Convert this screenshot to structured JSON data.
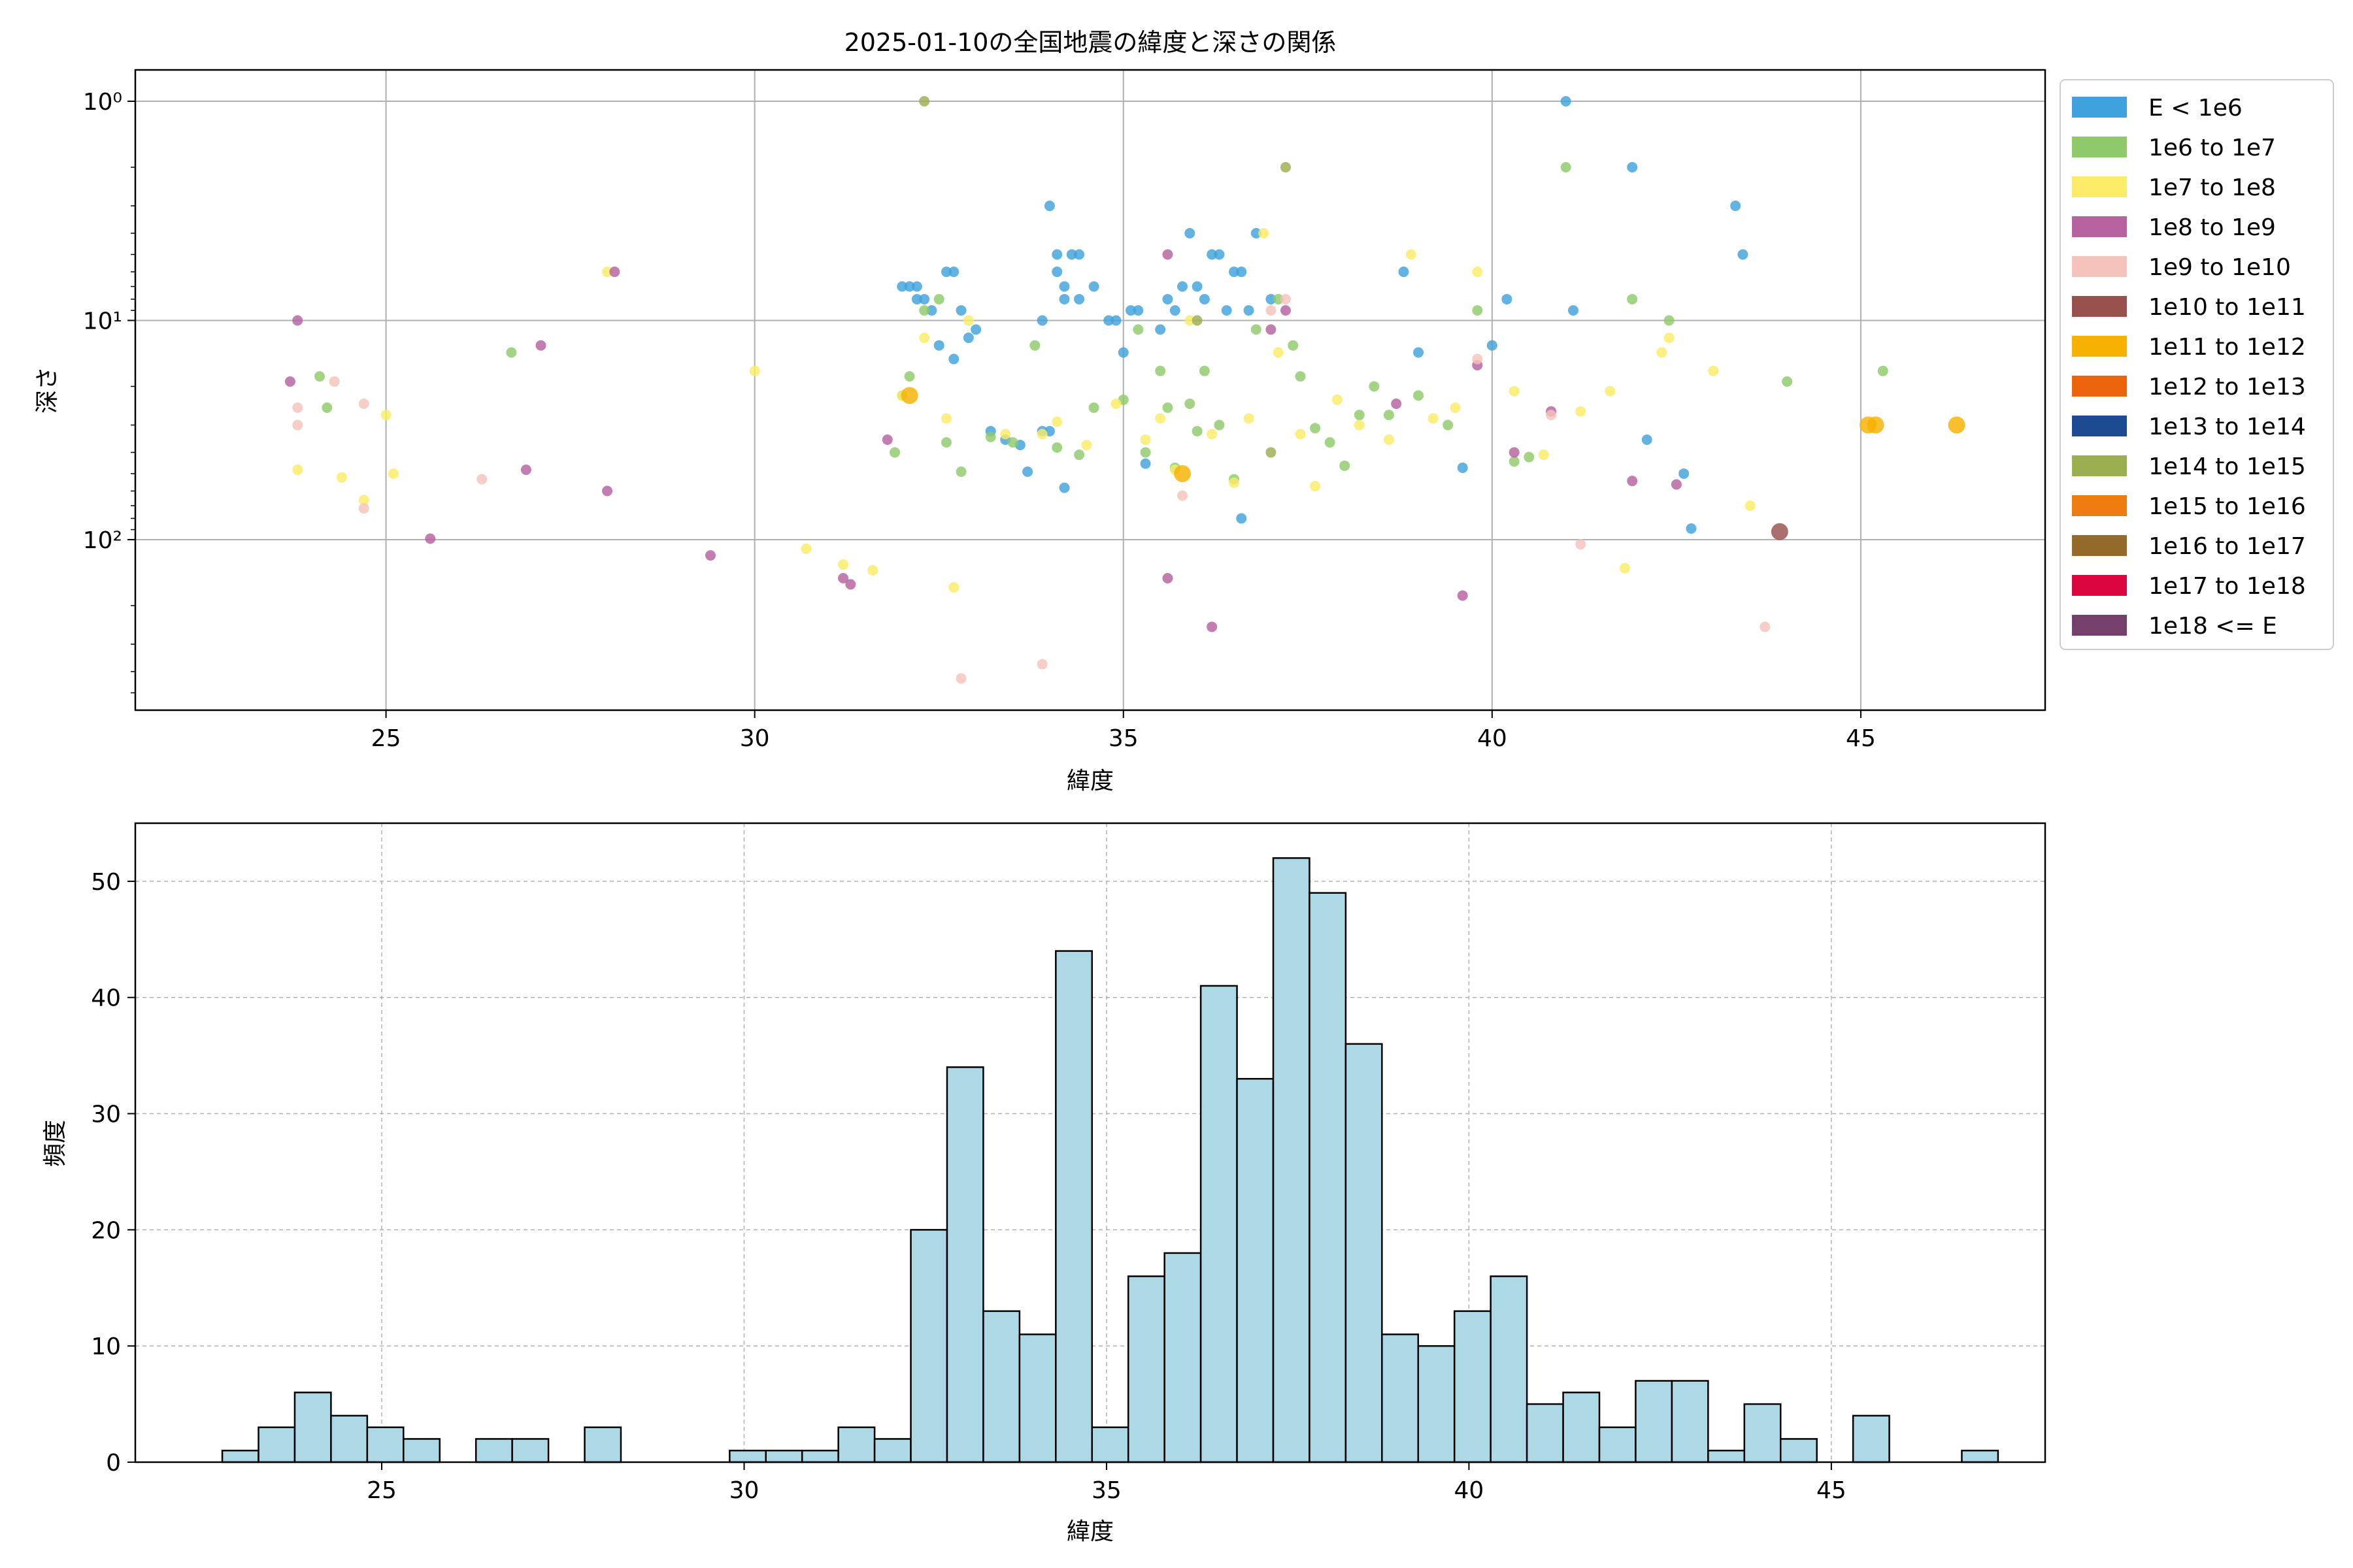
{
  "chart_data": [
    {
      "type": "scatter",
      "title": "2025-01-10の全国地震の緯度と深さの関係",
      "xlabel": "緯度",
      "ylabel": "深さ",
      "xlim": [
        21.6,
        47.5
      ],
      "ylim_depth": [
        1,
        600
      ],
      "yscale": "log",
      "y_inverted": true,
      "grid": true,
      "xticks": [
        25,
        30,
        35,
        40,
        45
      ],
      "yticks": [
        {
          "value": 1,
          "label": "10⁰"
        },
        {
          "value": 10,
          "label": "10¹"
        },
        {
          "value": 100,
          "label": "10²"
        }
      ],
      "legend": {
        "position": "outside-right",
        "entries": [
          {
            "label": "E < 1e6",
            "color": "#3fa2dc"
          },
          {
            "label": "1e6 to 1e7",
            "color": "#8fca6a"
          },
          {
            "label": "1e7 to 1e8",
            "color": "#fbeb66"
          },
          {
            "label": "1e8 to 1e9",
            "color": "#b5629f"
          },
          {
            "label": "1e9 to 1e10",
            "color": "#f5c2bc"
          },
          {
            "label": "1e10 to 1e11",
            "color": "#98514d"
          },
          {
            "label": "1e11 to 1e12",
            "color": "#f7b100"
          },
          {
            "label": "1e12 to 1e13",
            "color": "#ec6409"
          },
          {
            "label": "1e13 to 1e14",
            "color": "#1d4b92"
          },
          {
            "label": "1e14 to 1e15",
            "color": "#9aaf4f"
          },
          {
            "label": "1e15 to 1e16",
            "color": "#ee7b0d"
          },
          {
            "label": "1e16 to 1e17",
            "color": "#936a2a"
          },
          {
            "label": "1e17 to 1e18",
            "color": "#dc063e"
          },
          {
            "label": "1e18 <= E",
            "color": "#76406d"
          }
        ]
      },
      "series": [
        {
          "name": "E < 1e6",
          "points": [
            [
              32.0,
              7
            ],
            [
              32.1,
              7
            ],
            [
              32.2,
              7
            ],
            [
              32.2,
              8
            ],
            [
              32.3,
              8
            ],
            [
              32.4,
              9
            ],
            [
              32.5,
              13
            ],
            [
              32.6,
              6
            ],
            [
              32.7,
              6
            ],
            [
              32.8,
              9
            ],
            [
              32.9,
              12
            ],
            [
              32.7,
              15
            ],
            [
              33.0,
              11
            ],
            [
              33.2,
              32
            ],
            [
              33.4,
              35
            ],
            [
              33.6,
              37
            ],
            [
              33.7,
              49
            ],
            [
              33.9,
              10
            ],
            [
              33.9,
              32
            ],
            [
              34.0,
              32
            ],
            [
              34.0,
              3
            ],
            [
              34.1,
              5
            ],
            [
              34.2,
              7
            ],
            [
              34.3,
              5
            ],
            [
              34.4,
              8
            ],
            [
              34.1,
              6
            ],
            [
              34.2,
              8
            ],
            [
              34.2,
              58
            ],
            [
              34.4,
              5
            ],
            [
              34.6,
              7
            ],
            [
              34.8,
              10
            ],
            [
              34.9,
              10
            ],
            [
              35.0,
              14
            ],
            [
              35.1,
              9
            ],
            [
              35.2,
              9
            ],
            [
              35.3,
              45
            ],
            [
              35.5,
              11
            ],
            [
              35.6,
              8
            ],
            [
              35.7,
              9
            ],
            [
              35.8,
              7
            ],
            [
              35.9,
              4
            ],
            [
              36.0,
              7
            ],
            [
              36.1,
              8
            ],
            [
              36.2,
              5
            ],
            [
              36.3,
              5
            ],
            [
              36.4,
              9
            ],
            [
              36.5,
              6
            ],
            [
              36.6,
              6
            ],
            [
              36.7,
              9
            ],
            [
              36.6,
              80
            ],
            [
              36.8,
              4
            ],
            [
              37.0,
              8
            ],
            [
              38.8,
              6
            ],
            [
              39.0,
              14
            ],
            [
              39.6,
              47
            ],
            [
              40.0,
              13
            ],
            [
              40.2,
              8
            ],
            [
              41.0,
              1
            ],
            [
              41.1,
              9
            ],
            [
              41.9,
              2
            ],
            [
              42.1,
              35
            ],
            [
              42.6,
              50
            ],
            [
              42.7,
              89
            ],
            [
              43.3,
              3
            ],
            [
              43.4,
              5
            ]
          ]
        },
        {
          "name": "1e6 to 1e7",
          "points": [
            [
              24.1,
              18
            ],
            [
              24.2,
              25
            ],
            [
              26.7,
              14
            ],
            [
              31.9,
              40
            ],
            [
              32.0,
              22
            ],
            [
              32.1,
              18
            ],
            [
              32.3,
              9
            ],
            [
              32.5,
              8
            ],
            [
              32.6,
              36
            ],
            [
              32.8,
              49
            ],
            [
              33.2,
              34
            ],
            [
              33.5,
              36
            ],
            [
              33.8,
              13
            ],
            [
              34.1,
              38
            ],
            [
              34.4,
              41
            ],
            [
              34.6,
              25
            ],
            [
              35.0,
              23
            ],
            [
              35.2,
              11
            ],
            [
              35.3,
              40
            ],
            [
              35.5,
              17
            ],
            [
              35.6,
              25
            ],
            [
              35.7,
              47
            ],
            [
              35.9,
              24
            ],
            [
              36.0,
              32
            ],
            [
              36.1,
              17
            ],
            [
              36.3,
              30
            ],
            [
              36.5,
              53
            ],
            [
              36.8,
              11
            ],
            [
              37.1,
              8
            ],
            [
              37.3,
              13
            ],
            [
              37.4,
              18
            ],
            [
              37.6,
              31
            ],
            [
              37.8,
              36
            ],
            [
              38.0,
              46
            ],
            [
              38.2,
              27
            ],
            [
              38.4,
              20
            ],
            [
              38.6,
              27
            ],
            [
              39.0,
              22
            ],
            [
              39.4,
              30
            ],
            [
              39.8,
              9
            ],
            [
              40.3,
              44
            ],
            [
              40.5,
              42
            ],
            [
              41.0,
              2
            ],
            [
              41.9,
              8
            ],
            [
              42.4,
              10
            ],
            [
              44.0,
              19
            ],
            [
              45.3,
              17
            ]
          ]
        },
        {
          "name": "1e7 to 1e8",
          "points": [
            [
              23.8,
              48
            ],
            [
              24.4,
              52
            ],
            [
              24.7,
              66
            ],
            [
              25.0,
              27
            ],
            [
              25.1,
              50
            ],
            [
              28.0,
              6
            ],
            [
              30.0,
              17
            ],
            [
              30.7,
              110
            ],
            [
              31.2,
              130
            ],
            [
              31.6,
              138
            ],
            [
              32.0,
              22
            ],
            [
              32.3,
              12
            ],
            [
              32.6,
              28
            ],
            [
              32.7,
              165
            ],
            [
              32.9,
              10
            ],
            [
              33.4,
              33
            ],
            [
              33.9,
              33
            ],
            [
              34.1,
              29
            ],
            [
              34.5,
              37
            ],
            [
              34.9,
              24
            ],
            [
              35.3,
              35
            ],
            [
              35.5,
              28
            ],
            [
              35.7,
              48
            ],
            [
              35.9,
              10
            ],
            [
              36.2,
              33
            ],
            [
              36.5,
              55
            ],
            [
              36.7,
              28
            ],
            [
              36.9,
              4
            ],
            [
              37.1,
              14
            ],
            [
              37.4,
              33
            ],
            [
              37.6,
              57
            ],
            [
              37.9,
              23
            ],
            [
              38.2,
              30
            ],
            [
              38.6,
              35
            ],
            [
              38.9,
              5
            ],
            [
              39.2,
              28
            ],
            [
              39.5,
              25
            ],
            [
              39.8,
              6
            ],
            [
              40.3,
              21
            ],
            [
              40.7,
              41
            ],
            [
              41.2,
              26
            ],
            [
              41.6,
              21
            ],
            [
              41.8,
              135
            ],
            [
              42.3,
              14
            ],
            [
              42.4,
              12
            ],
            [
              43.0,
              17
            ],
            [
              43.5,
              70
            ]
          ]
        },
        {
          "name": "1e8 to 1e9",
          "points": [
            [
              23.7,
              19
            ],
            [
              23.8,
              10
            ],
            [
              25.6,
              99
            ],
            [
              26.9,
              48
            ],
            [
              27.1,
              13
            ],
            [
              28.0,
              60
            ],
            [
              28.1,
              6
            ],
            [
              29.4,
              118
            ],
            [
              31.2,
              150
            ],
            [
              31.3,
              160
            ],
            [
              31.8,
              35
            ],
            [
              35.6,
              5
            ],
            [
              35.6,
              150
            ],
            [
              36.2,
              250
            ],
            [
              37.0,
              11
            ],
            [
              37.2,
              9
            ],
            [
              38.7,
              24
            ],
            [
              39.6,
              180
            ],
            [
              39.8,
              16
            ],
            [
              40.3,
              40
            ],
            [
              40.8,
              26
            ],
            [
              41.9,
              54
            ],
            [
              42.5,
              56
            ]
          ]
        },
        {
          "name": "1e9 to 1e10",
          "points": [
            [
              23.8,
              25
            ],
            [
              23.8,
              30
            ],
            [
              24.3,
              19
            ],
            [
              24.7,
              24
            ],
            [
              24.7,
              72
            ],
            [
              26.3,
              53
            ],
            [
              32.8,
              430
            ],
            [
              33.9,
              370
            ],
            [
              35.8,
              63
            ],
            [
              37.0,
              9
            ],
            [
              37.2,
              8
            ],
            [
              39.8,
              15
            ],
            [
              40.8,
              27
            ],
            [
              41.2,
              105
            ],
            [
              43.7,
              250
            ]
          ]
        },
        {
          "name": "1e10 to 1e11",
          "points": [
            [
              43.9,
              92
            ]
          ]
        },
        {
          "name": "1e11 to 1e12",
          "points": [
            [
              32.1,
              22
            ],
            [
              35.8,
              50
            ],
            [
              45.1,
              30
            ],
            [
              45.2,
              30
            ],
            [
              46.3,
              30
            ]
          ]
        },
        {
          "name": "1e14 to 1e15",
          "points": [
            [
              32.3,
              1
            ],
            [
              37.2,
              2
            ],
            [
              36.0,
              10
            ],
            [
              37.0,
              40
            ]
          ]
        }
      ]
    },
    {
      "type": "bar",
      "xlabel": "緯度",
      "ylabel": "頻度",
      "xlim": [
        21.6,
        47.95
      ],
      "ylim": [
        0,
        55
      ],
      "grid": true,
      "xticks": [
        25,
        30,
        35,
        40,
        45
      ],
      "yticks": [
        0,
        10,
        20,
        30,
        40,
        50
      ],
      "bar_color": "#add8e6",
      "bin_start": 22.8,
      "bin_width": 0.5,
      "values": [
        1,
        3,
        6,
        4,
        3,
        2,
        0,
        2,
        2,
        0,
        3,
        0,
        0,
        0,
        1,
        1,
        1,
        3,
        2,
        20,
        34,
        13,
        11,
        44,
        3,
        16,
        18,
        41,
        33,
        52,
        49,
        36,
        11,
        10,
        13,
        16,
        5,
        6,
        3,
        7,
        7,
        1,
        5,
        2,
        0,
        4,
        0,
        0,
        1
      ]
    }
  ]
}
